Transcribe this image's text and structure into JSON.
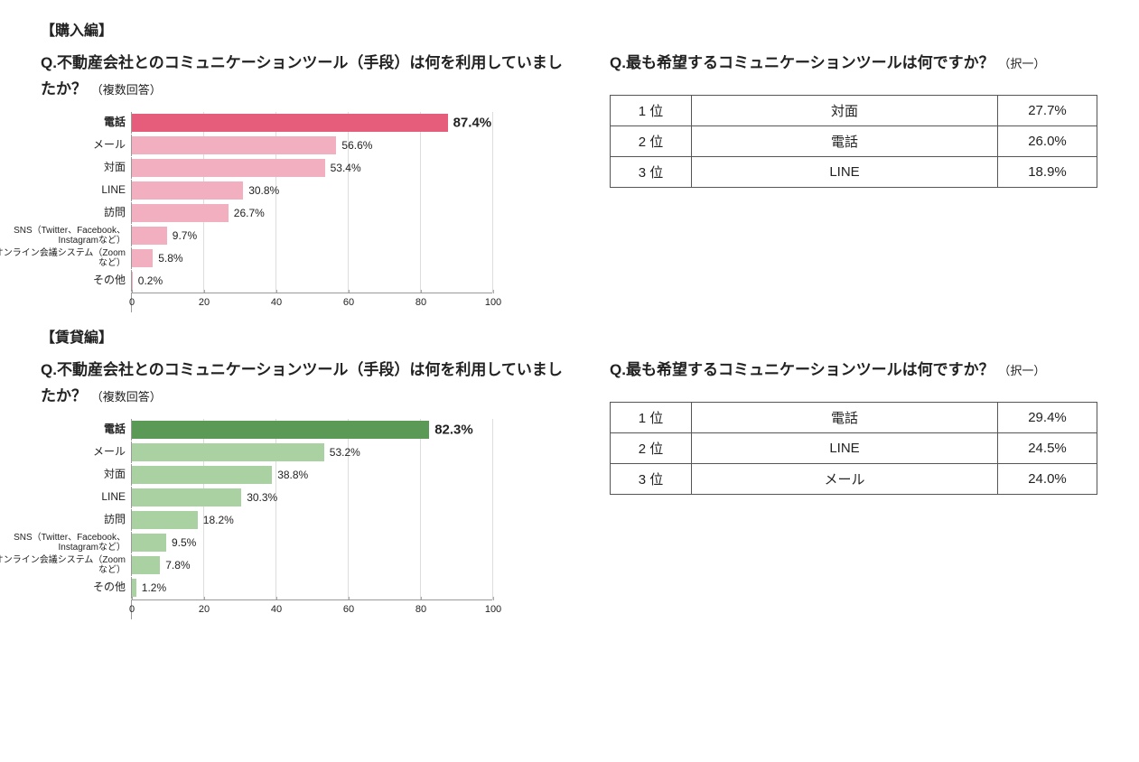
{
  "colors": {
    "pink_dark": "#e55d7a",
    "pink_light": "#f2afc0",
    "green_dark": "#5b9957",
    "green_light": "#a9d1a1",
    "border": "#999999",
    "text": "#222222"
  },
  "buy": {
    "section_title": "【購入編】",
    "chart": {
      "type": "hbar",
      "title": "Q.不動産会社とのコミュニケーションツール（手段）は何を利用していましたか？",
      "title_sub": "（複数回答）",
      "xlim": [
        0,
        100
      ],
      "xtick_step": 20,
      "highlight_color": "#e55d7a",
      "bar_color": "#f2afc0",
      "categories": [
        "電話",
        "メール",
        "対面",
        "LINE",
        "訪問",
        "SNS（Twitter、Facebook、Instagramなど）",
        "オンライン会議システム（Zoomなど）",
        "その他"
      ],
      "values": [
        87.4,
        56.6,
        53.4,
        30.8,
        26.7,
        9.7,
        5.8,
        0.2
      ],
      "labels": [
        "87.4%",
        "56.6%",
        "53.4%",
        "30.8%",
        "26.7%",
        "9.7%",
        "5.8%",
        "0.2%"
      ]
    },
    "table": {
      "title": "Q.最も希望するコミュニケーションツールは何ですか？",
      "title_sub": "（択一）",
      "rows": [
        {
          "rank": "1 位",
          "name": "対面",
          "pct": "27.7%"
        },
        {
          "rank": "2 位",
          "name": "電話",
          "pct": "26.0%"
        },
        {
          "rank": "3 位",
          "name": "LINE",
          "pct": "18.9%"
        }
      ]
    }
  },
  "rent": {
    "section_title": "【賃貸編】",
    "chart": {
      "type": "hbar",
      "title": "Q.不動産会社とのコミュニケーションツール（手段）は何を利用していましたか？",
      "title_sub": "（複数回答）",
      "xlim": [
        0,
        100
      ],
      "xtick_step": 20,
      "highlight_color": "#5b9957",
      "bar_color": "#a9d1a1",
      "categories": [
        "電話",
        "メール",
        "対面",
        "LINE",
        "訪問",
        "SNS（Twitter、Facebook、Instagramなど）",
        "オンライン会議システム（Zoomなど）",
        "その他"
      ],
      "values": [
        82.3,
        53.2,
        38.8,
        30.3,
        18.2,
        9.5,
        7.8,
        1.2
      ],
      "labels": [
        "82.3%",
        "53.2%",
        "38.8%",
        "30.3%",
        "18.2%",
        "9.5%",
        "7.8%",
        "1.2%"
      ]
    },
    "table": {
      "title": "Q.最も希望するコミュニケーションツールは何ですか？",
      "title_sub": "（択一）",
      "rows": [
        {
          "rank": "1 位",
          "name": "電話",
          "pct": "29.4%"
        },
        {
          "rank": "2 位",
          "name": "LINE",
          "pct": "24.5%"
        },
        {
          "rank": "3 位",
          "name": "メール",
          "pct": "24.0%"
        }
      ]
    }
  }
}
